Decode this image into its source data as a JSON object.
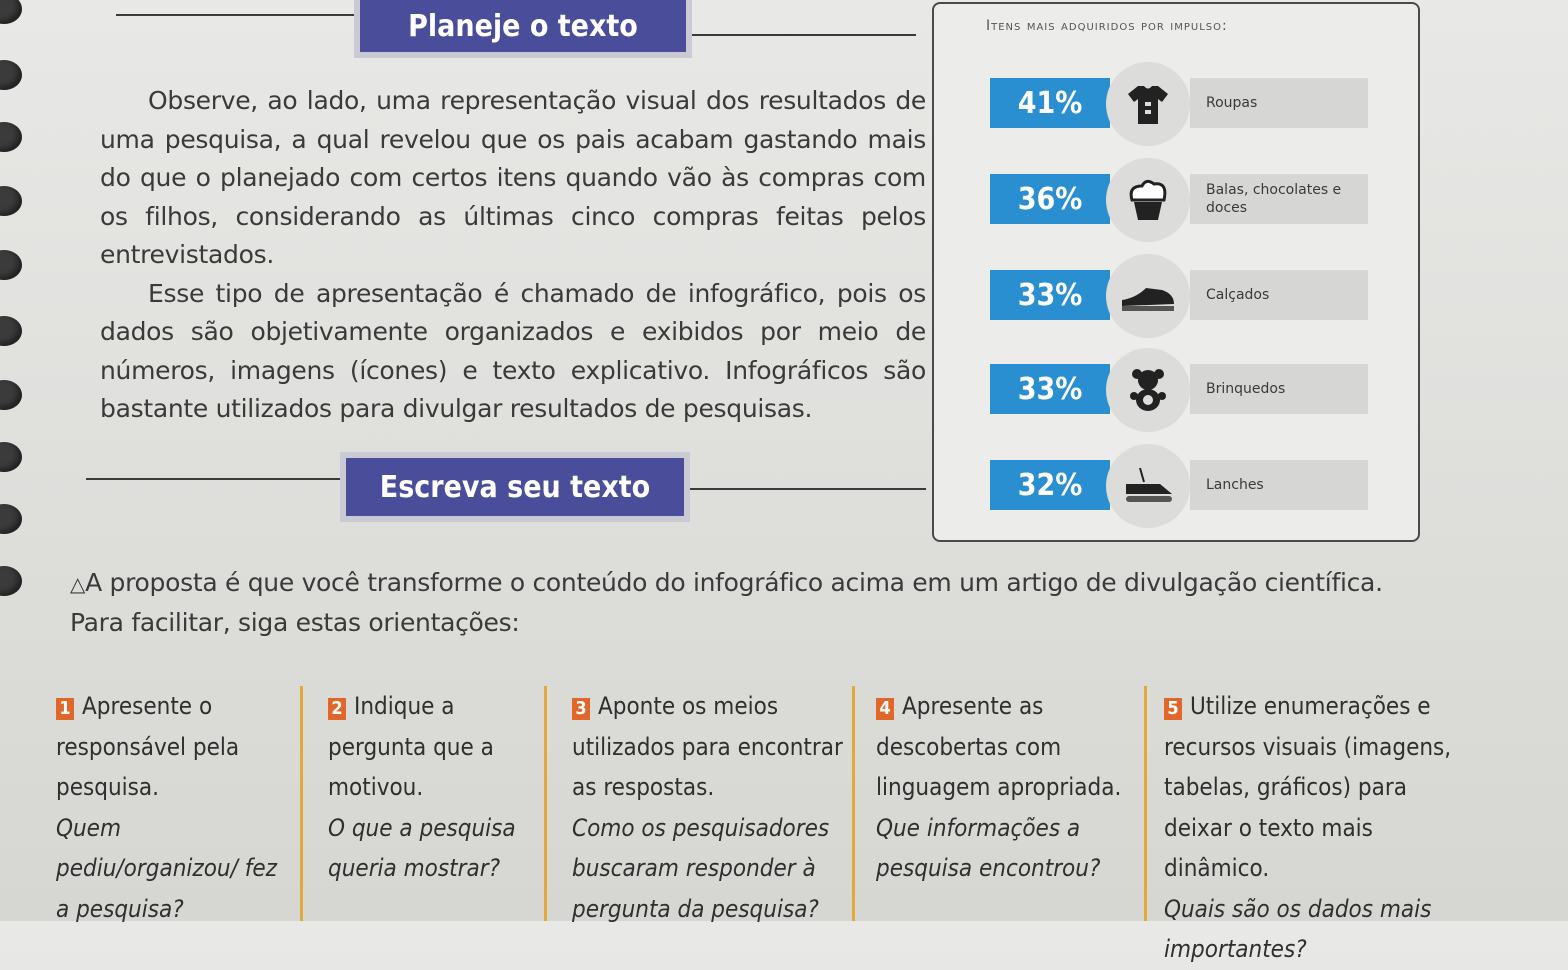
{
  "sections": {
    "plan_title": "Planeje o texto",
    "write_title": "Escreva seu texto"
  },
  "body": {
    "p1": "Observe, ao lado, uma representação visual dos resultados de uma pesquisa, a qual revelou que os pais acabam gastando mais do que o planejado com certos itens quando vão às compras com os filhos, considerando as últimas cinco compras feitas pelos entrevistados.",
    "p2": "Esse tipo de apresentação é chamado de infográfico, pois os dados são objetivamente organizados e exibidos por meio de números, imagens (ícones) e texto explicativo. Infográficos são bastante utilizados para divulgar resultados de pesquisas."
  },
  "infographic": {
    "title": "Itens mais adquiridos por impulso:",
    "items": [
      {
        "percent": "41%",
        "label": "Roupas",
        "icon": "shirt-icon"
      },
      {
        "percent": "36%",
        "label": "Balas, chocolates e doces",
        "icon": "cupcake-icon"
      },
      {
        "percent": "33%",
        "label": "Calçados",
        "icon": "shoe-icon"
      },
      {
        "percent": "33%",
        "label": "Brinquedos",
        "icon": "teddy-bear-icon"
      },
      {
        "percent": "32%",
        "label": "Lanches",
        "icon": "sandwich-icon"
      }
    ]
  },
  "proposal": {
    "line1": "A proposta é que você transforme o conteúdo do infográfico acima em um artigo de divulgação científica.",
    "line2": "Para facilitar, siga estas orientações:"
  },
  "steps": [
    {
      "num": "1",
      "text": "Apresente o responsável pela pesquisa.",
      "question": "Quem pediu/organizou/ fez a pesquisa?"
    },
    {
      "num": "2",
      "text": "Indique a pergunta que a motivou.",
      "question": "O que a pesquisa queria mostrar?"
    },
    {
      "num": "3",
      "text": "Aponte os meios utilizados para encontrar as respostas.",
      "question": "Como os pesquisadores buscaram responder à pergunta da pesquisa?"
    },
    {
      "num": "4",
      "text": "Apresente as descobertas com linguagem apropriada.",
      "question": "Que informações a pesquisa encontrou?"
    },
    {
      "num": "5",
      "text": "Utilize enumerações e recursos visuais (imagens, tabelas, gráficos) para deixar o texto mais dinâmico.",
      "question": "Quais são os dados mais importantes?"
    }
  ]
}
